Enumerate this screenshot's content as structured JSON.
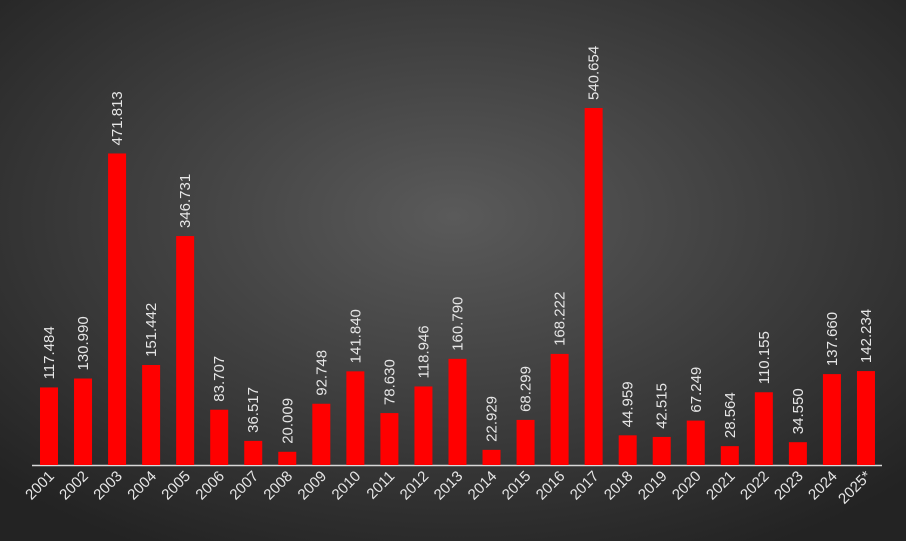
{
  "chart_data": {
    "type": "bar",
    "categories": [
      "2001",
      "2002",
      "2003",
      "2004",
      "2005",
      "2006",
      "2007",
      "2008",
      "2009",
      "2010",
      "2011",
      "2012",
      "2013",
      "2014",
      "2015",
      "2016",
      "2017",
      "2018",
      "2019",
      "2020",
      "2021",
      "2022",
      "2023",
      "2024",
      "2025*"
    ],
    "values": [
      117484,
      130990,
      471813,
      151442,
      346731,
      83707,
      36517,
      20009,
      92748,
      141840,
      78630,
      118946,
      160790,
      22929,
      68299,
      168222,
      540654,
      44959,
      42515,
      67249,
      28564,
      110155,
      34550,
      137660,
      142234
    ],
    "value_labels": [
      "117.484",
      "130.990",
      "471.813",
      "151.442",
      "346.731",
      "83.707",
      "36.517",
      "20.009",
      "92.748",
      "141.840",
      "78.630",
      "118.946",
      "160.790",
      "22.929",
      "68.299",
      "168.222",
      "540.654",
      "44.959",
      "42.515",
      "67.249",
      "28.564",
      "110.155",
      "34.550",
      "137.660",
      "142.234"
    ],
    "color": "#ff0000"
  }
}
